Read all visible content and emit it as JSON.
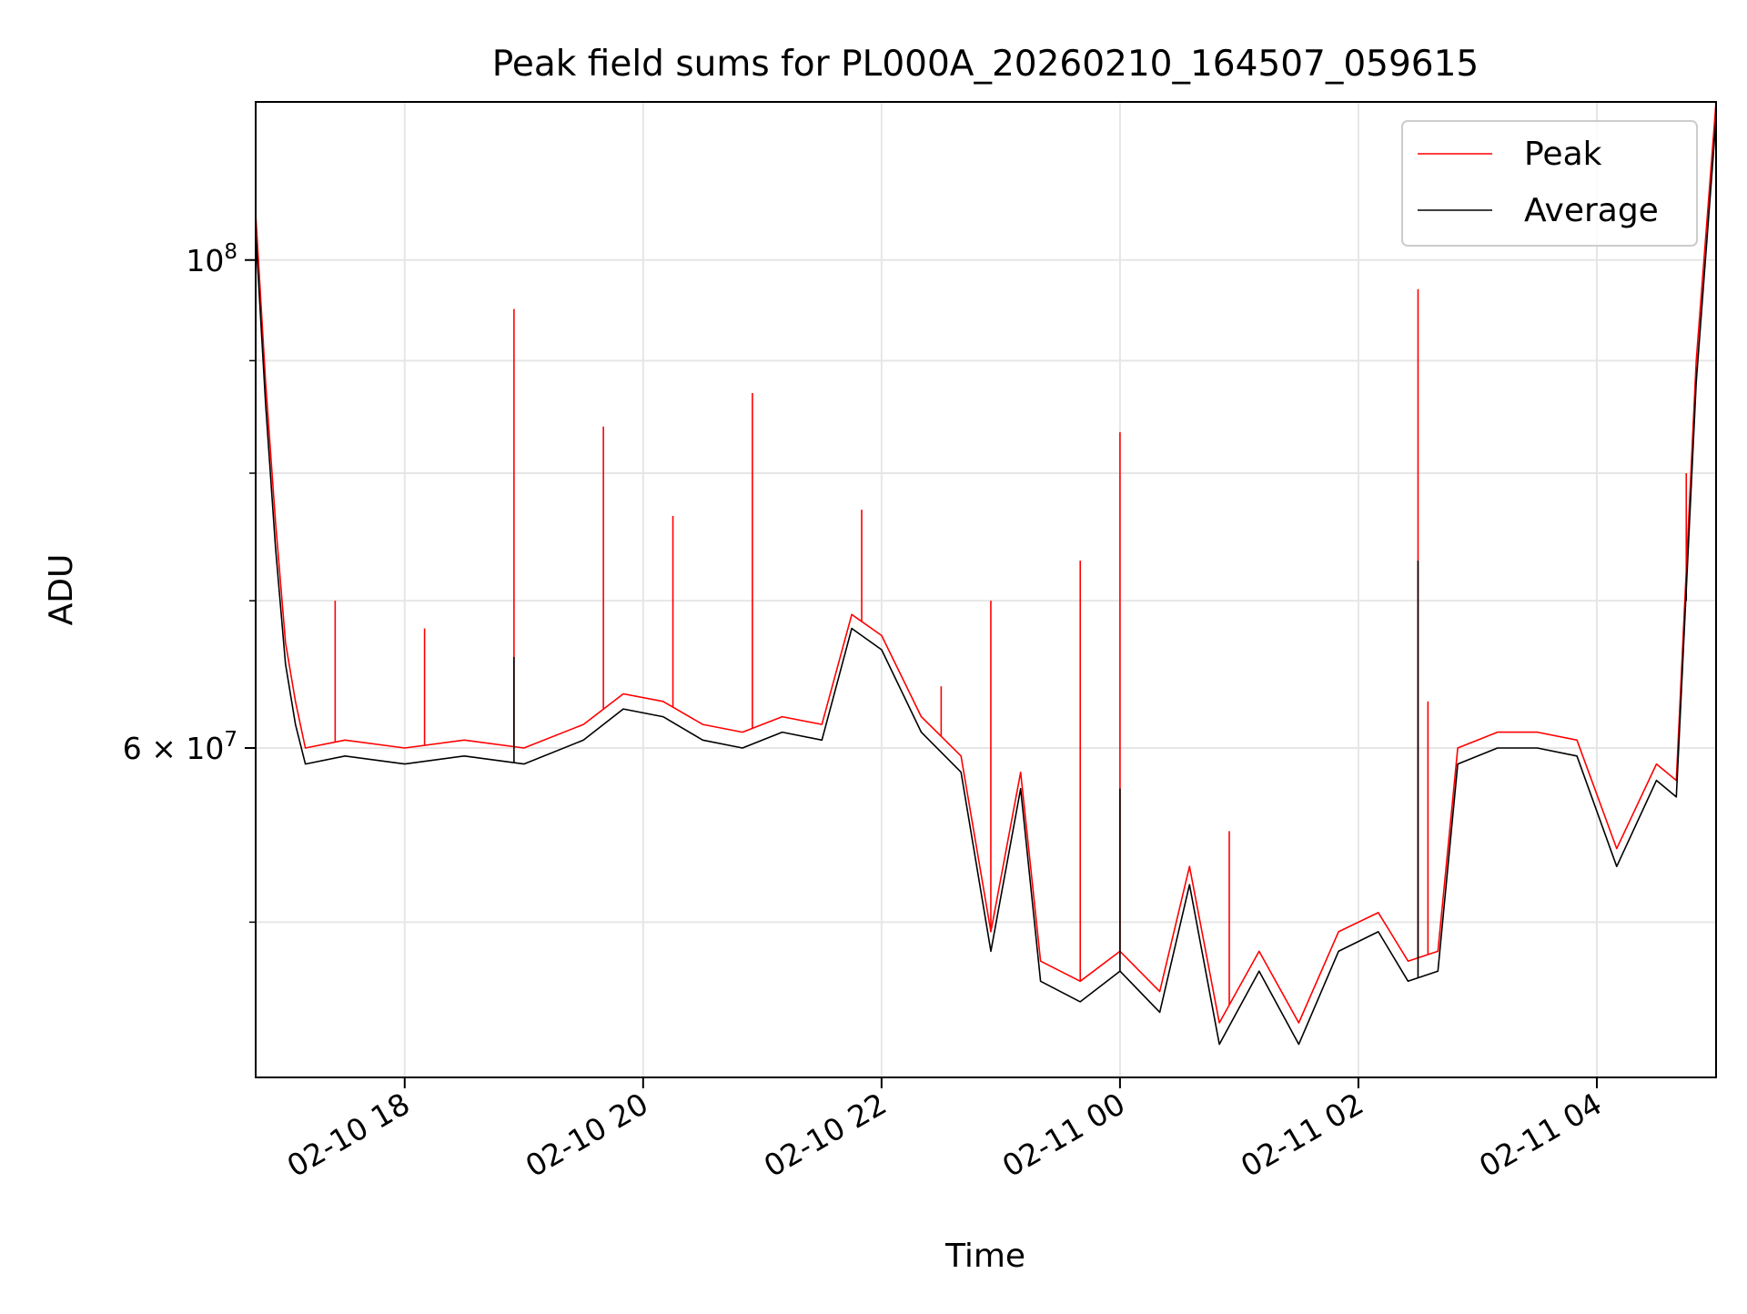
{
  "chart_data": {
    "type": "line",
    "title": "Peak field sums for PL000A_20260210_164507_059615",
    "xlabel": "Time",
    "ylabel": "ADU",
    "x_range": [
      "2026-02-10 16:45",
      "2026-02-11 05:00"
    ],
    "y_range": [
      42500000,
      118000000
    ],
    "y_scale": "log",
    "grid": true,
    "legend_position": "top-right",
    "x_ticks": [
      {
        "time": "2026-02-10 18:00",
        "label": "02-10 18"
      },
      {
        "time": "2026-02-10 20:00",
        "label": "02-10 20"
      },
      {
        "time": "2026-02-10 22:00",
        "label": "02-10 22"
      },
      {
        "time": "2026-02-11 00:00",
        "label": "02-11 00"
      },
      {
        "time": "2026-02-11 02:00",
        "label": "02-11 02"
      },
      {
        "time": "2026-02-11 04:00",
        "label": "02-11 04"
      }
    ],
    "y_ticks_major": [
      {
        "value": 100000000,
        "base": "10",
        "exp": "8"
      },
      {
        "value": 60000000,
        "mantissa": "6",
        "base": "10",
        "exp": "7"
      }
    ],
    "y_ticks_minor": [
      50000000,
      70000000,
      80000000,
      90000000
    ],
    "series": [
      {
        "name": "Peak",
        "color": "#ff0000",
        "points": [
          [
            "2026-02-10 16:45",
            105000000
          ],
          [
            "2026-02-10 16:50",
            88000000
          ],
          [
            "2026-02-10 16:55",
            76000000
          ],
          [
            "2026-02-10 17:00",
            67000000
          ],
          [
            "2026-02-10 17:05",
            63000000
          ],
          [
            "2026-02-10 17:10",
            60000000
          ],
          [
            "2026-02-10 17:30",
            60500000
          ],
          [
            "2026-02-10 18:00",
            60000000
          ],
          [
            "2026-02-10 18:30",
            60500000
          ],
          [
            "2026-02-10 19:00",
            60000000
          ],
          [
            "2026-02-10 19:30",
            61500000
          ],
          [
            "2026-02-10 19:50",
            63500000
          ],
          [
            "2026-02-10 20:10",
            63000000
          ],
          [
            "2026-02-10 20:30",
            61500000
          ],
          [
            "2026-02-10 20:50",
            61000000
          ],
          [
            "2026-02-10 21:10",
            62000000
          ],
          [
            "2026-02-10 21:30",
            61500000
          ],
          [
            "2026-02-10 21:45",
            69000000
          ],
          [
            "2026-02-10 22:00",
            67500000
          ],
          [
            "2026-02-10 22:20",
            62000000
          ],
          [
            "2026-02-10 22:40",
            59500000
          ],
          [
            "2026-02-10 22:55",
            49500000
          ],
          [
            "2026-02-10 23:10",
            58500000
          ],
          [
            "2026-02-10 23:20",
            48000000
          ],
          [
            "2026-02-10 23:40",
            47000000
          ],
          [
            "2026-02-11 00:00",
            48500000
          ],
          [
            "2026-02-11 00:20",
            46500000
          ],
          [
            "2026-02-11 00:35",
            53000000
          ],
          [
            "2026-02-11 00:50",
            45000000
          ],
          [
            "2026-02-11 01:10",
            48500000
          ],
          [
            "2026-02-11 01:30",
            45000000
          ],
          [
            "2026-02-11 01:50",
            49500000
          ],
          [
            "2026-02-11 02:10",
            50500000
          ],
          [
            "2026-02-11 02:25",
            48000000
          ],
          [
            "2026-02-11 02:40",
            48500000
          ],
          [
            "2026-02-11 02:50",
            60000000
          ],
          [
            "2026-02-11 03:10",
            61000000
          ],
          [
            "2026-02-11 03:30",
            61000000
          ],
          [
            "2026-02-11 03:50",
            60500000
          ],
          [
            "2026-02-11 04:10",
            54000000
          ],
          [
            "2026-02-11 04:30",
            59000000
          ],
          [
            "2026-02-11 04:40",
            58000000
          ],
          [
            "2026-02-11 04:50",
            90000000
          ],
          [
            "2026-02-11 05:00",
            118000000
          ]
        ],
        "spikes": [
          [
            "2026-02-10 17:25",
            70000000
          ],
          [
            "2026-02-10 18:10",
            68000000
          ],
          [
            "2026-02-10 18:55",
            95000000
          ],
          [
            "2026-02-10 19:40",
            84000000
          ],
          [
            "2026-02-10 20:15",
            76500000
          ],
          [
            "2026-02-10 20:55",
            87000000
          ],
          [
            "2026-02-10 21:50",
            77000000
          ],
          [
            "2026-02-10 22:30",
            64000000
          ],
          [
            "2026-02-10 22:55",
            70000000
          ],
          [
            "2026-02-10 23:40",
            73000000
          ],
          [
            "2026-02-11 00:00",
            83500000
          ],
          [
            "2026-02-11 00:55",
            55000000
          ],
          [
            "2026-02-11 02:30",
            97000000
          ],
          [
            "2026-02-11 02:35",
            63000000
          ],
          [
            "2026-02-11 04:45",
            80000000
          ]
        ]
      },
      {
        "name": "Average",
        "color": "#000000",
        "points": [
          [
            "2026-02-10 16:45",
            103000000
          ],
          [
            "2026-02-10 16:50",
            86000000
          ],
          [
            "2026-02-10 16:55",
            74000000
          ],
          [
            "2026-02-10 17:00",
            65500000
          ],
          [
            "2026-02-10 17:05",
            61500000
          ],
          [
            "2026-02-10 17:10",
            59000000
          ],
          [
            "2026-02-10 17:30",
            59500000
          ],
          [
            "2026-02-10 18:00",
            59000000
          ],
          [
            "2026-02-10 18:30",
            59500000
          ],
          [
            "2026-02-10 19:00",
            59000000
          ],
          [
            "2026-02-10 19:30",
            60500000
          ],
          [
            "2026-02-10 19:50",
            62500000
          ],
          [
            "2026-02-10 20:10",
            62000000
          ],
          [
            "2026-02-10 20:30",
            60500000
          ],
          [
            "2026-02-10 20:50",
            60000000
          ],
          [
            "2026-02-10 21:10",
            61000000
          ],
          [
            "2026-02-10 21:30",
            60500000
          ],
          [
            "2026-02-10 21:45",
            68000000
          ],
          [
            "2026-02-10 22:00",
            66500000
          ],
          [
            "2026-02-10 22:20",
            61000000
          ],
          [
            "2026-02-10 22:40",
            58500000
          ],
          [
            "2026-02-10 22:55",
            48500000
          ],
          [
            "2026-02-10 23:10",
            57500000
          ],
          [
            "2026-02-10 23:20",
            47000000
          ],
          [
            "2026-02-10 23:40",
            46000000
          ],
          [
            "2026-02-11 00:00",
            47500000
          ],
          [
            "2026-02-11 00:20",
            45500000
          ],
          [
            "2026-02-11 00:35",
            52000000
          ],
          [
            "2026-02-11 00:50",
            44000000
          ],
          [
            "2026-02-11 01:10",
            47500000
          ],
          [
            "2026-02-11 01:30",
            44000000
          ],
          [
            "2026-02-11 01:50",
            48500000
          ],
          [
            "2026-02-11 02:10",
            49500000
          ],
          [
            "2026-02-11 02:25",
            47000000
          ],
          [
            "2026-02-11 02:40",
            47500000
          ],
          [
            "2026-02-11 02:50",
            59000000
          ],
          [
            "2026-02-11 03:10",
            60000000
          ],
          [
            "2026-02-11 03:30",
            60000000
          ],
          [
            "2026-02-11 03:50",
            59500000
          ],
          [
            "2026-02-11 04:10",
            53000000
          ],
          [
            "2026-02-11 04:30",
            58000000
          ],
          [
            "2026-02-11 04:40",
            57000000
          ],
          [
            "2026-02-11 04:50",
            88000000
          ],
          [
            "2026-02-11 05:00",
            116000000
          ]
        ],
        "spikes": [
          [
            "2026-02-10 18:55",
            66000000
          ],
          [
            "2026-02-11 00:00",
            57500000
          ],
          [
            "2026-02-11 02:30",
            73000000
          ],
          [
            "2026-02-11 04:45",
            70000000
          ]
        ]
      }
    ]
  }
}
